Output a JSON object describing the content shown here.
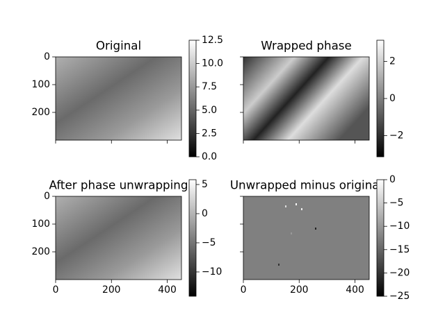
{
  "chart_data": [
    {
      "type": "image",
      "title": "Original",
      "cmap": "gray",
      "xlim": [
        0,
        451
      ],
      "ylim": [
        300,
        0
      ],
      "xticks": [
        0,
        200,
        400
      ],
      "yticks": [
        0,
        100,
        200
      ],
      "show_xticklabels": false,
      "show_yticklabels": true,
      "clim": [
        0,
        12.5
      ],
      "cticks": [
        {
          "value": 0,
          "label": "0.0"
        },
        2.5,
        {
          "value": 5,
          "label": "5.0"
        },
        7.5,
        {
          "value": 10,
          "label": "10.0"
        },
        12.5
      ]
    },
    {
      "type": "image",
      "title": "Wrapped phase",
      "cmap": "gray",
      "xlim": [
        0,
        451
      ],
      "ylim": [
        300,
        0
      ],
      "xticks": [
        0,
        200,
        400
      ],
      "yticks": [
        0,
        100,
        200
      ],
      "show_xticklabels": false,
      "show_yticklabels": false,
      "clim": [
        -3.14159,
        3.14159
      ],
      "cticks": [
        {
          "value": -2,
          "label": "−2"
        },
        0,
        2
      ]
    },
    {
      "type": "image",
      "title": "After phase unwrapping",
      "cmap": "gray",
      "xlim": [
        0,
        451
      ],
      "ylim": [
        300,
        0
      ],
      "xticks": [
        0,
        200,
        400
      ],
      "yticks": [
        0,
        100,
        200
      ],
      "show_xticklabels": true,
      "show_yticklabels": true,
      "clim": [
        -14.17,
        5.83
      ],
      "cticks": [
        {
          "value": -10,
          "label": "−10"
        },
        {
          "value": -5,
          "label": "−5"
        },
        0,
        5
      ]
    },
    {
      "type": "image",
      "title": "Unwrapped minus original",
      "cmap": "gray",
      "xlim": [
        0,
        451
      ],
      "ylim": [
        300,
        0
      ],
      "xticks": [
        0,
        200,
        400
      ],
      "yticks": [
        0,
        100,
        200
      ],
      "show_xticklabels": true,
      "show_yticklabels": false,
      "clim": [
        -25,
        0
      ],
      "cticks": [
        {
          "value": -25,
          "label": "−25"
        },
        {
          "value": -20,
          "label": "−20"
        },
        {
          "value": -15,
          "label": "−15"
        },
        {
          "value": -10,
          "label": "−10"
        },
        {
          "value": -5,
          "label": "−5"
        },
        0
      ]
    }
  ]
}
